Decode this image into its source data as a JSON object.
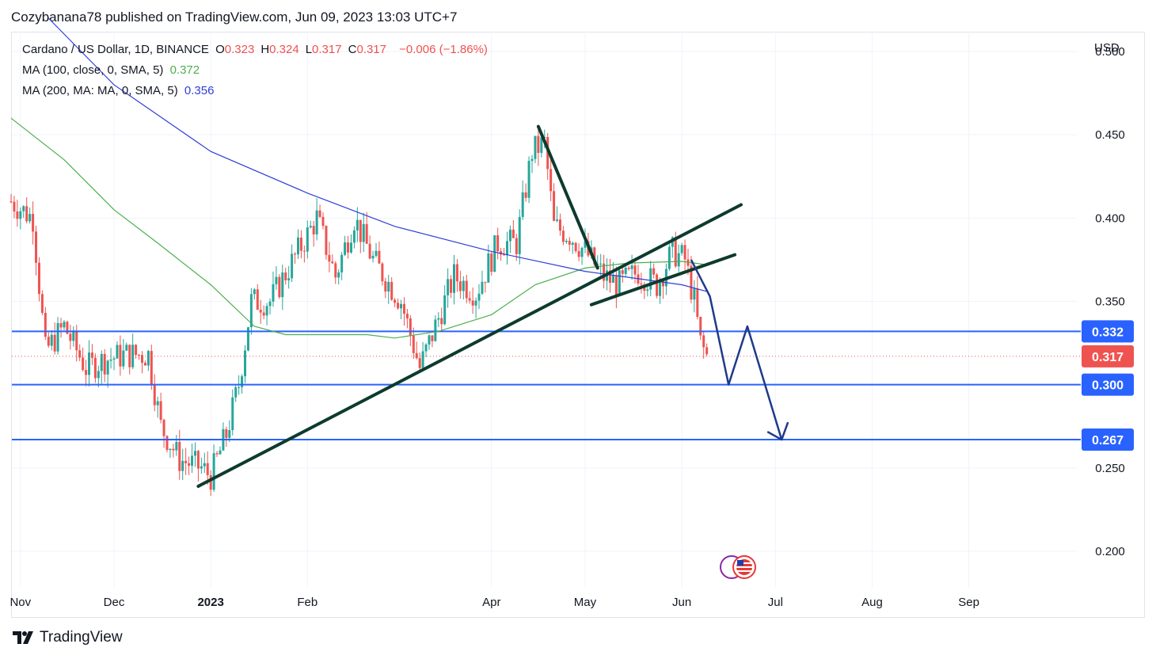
{
  "publisher_line": "Cozybanana78 published on TradingView.com, Jun 09, 2023 13:03 UTC+7",
  "brand": {
    "name": "TradingView",
    "logo_icon": "tradingview-logo-icon"
  },
  "legend": {
    "symbol": "Cardano / US Dollar, 1D, BINANCE",
    "ohlc": [
      {
        "key": "O",
        "value": "0.323"
      },
      {
        "key": "H",
        "value": "0.324"
      },
      {
        "key": "L",
        "value": "0.317"
      },
      {
        "key": "C",
        "value": "0.317"
      }
    ],
    "change": "−0.006 (−1.86%)",
    "ma100_label": "MA (100, close, 0, SMA, 5)",
    "ma100_value": "0.372",
    "ma200_label": "MA (200, MA: MA, 0, SMA, 5)",
    "ma200_value": "0.356"
  },
  "colors": {
    "up": "#26a69a",
    "down": "#ef5350",
    "ma100": "#4caf50",
    "ma200": "#2f3ed8",
    "hline": "#2962ff",
    "trend": "#0d3b2e",
    "projection": "#1e3a8a",
    "price_tag": "#ef5350"
  },
  "chart_data": {
    "type": "candlestick",
    "currency": "USD",
    "ylim": [
      0.18,
      0.51
    ],
    "y_ticks": [
      "0.500",
      "0.450",
      "0.400",
      "0.350",
      "0.250",
      "0.200"
    ],
    "x_ticks": [
      "Nov",
      "Dec",
      "2023",
      "Feb",
      "Apr",
      "May",
      "Jun",
      "Jul",
      "Aug",
      "Sep"
    ],
    "x_tick_dates": [
      "2022-11-01",
      "2022-12-01",
      "2023-01-01",
      "2023-02-01",
      "2023-04-01",
      "2023-05-01",
      "2023-06-01",
      "2023-07-01",
      "2023-08-01",
      "2023-09-01"
    ],
    "date_range": [
      "2022-10-29",
      "2023-09-28"
    ],
    "last_date": "2023-06-09",
    "last_price": 0.317,
    "last_price_label": "0.317",
    "horizontal_levels": [
      {
        "value": 0.332,
        "label": "0.332"
      },
      {
        "value": 0.3,
        "label": "0.300"
      },
      {
        "value": 0.267,
        "label": "0.267"
      }
    ],
    "close_series": [
      {
        "d": "2022-10-29",
        "v": 0.41
      },
      {
        "d": "2022-11-05",
        "v": 0.4
      },
      {
        "d": "2022-11-09",
        "v": 0.32
      },
      {
        "d": "2022-11-15",
        "v": 0.335
      },
      {
        "d": "2022-11-22",
        "v": 0.31
      },
      {
        "d": "2022-11-28",
        "v": 0.315
      },
      {
        "d": "2022-12-05",
        "v": 0.318
      },
      {
        "d": "2022-12-12",
        "v": 0.318
      },
      {
        "d": "2022-12-16",
        "v": 0.275
      },
      {
        "d": "2022-12-22",
        "v": 0.255
      },
      {
        "d": "2022-12-29",
        "v": 0.25
      },
      {
        "d": "2023-01-01",
        "v": 0.245
      },
      {
        "d": "2023-01-06",
        "v": 0.27
      },
      {
        "d": "2023-01-10",
        "v": 0.3
      },
      {
        "d": "2023-01-14",
        "v": 0.35
      },
      {
        "d": "2023-01-20",
        "v": 0.35
      },
      {
        "d": "2023-01-29",
        "v": 0.38
      },
      {
        "d": "2023-02-04",
        "v": 0.4
      },
      {
        "d": "2023-02-10",
        "v": 0.365
      },
      {
        "d": "2023-02-16",
        "v": 0.4
      },
      {
        "d": "2023-02-22",
        "v": 0.375
      },
      {
        "d": "2023-03-03",
        "v": 0.35
      },
      {
        "d": "2023-03-09",
        "v": 0.31
      },
      {
        "d": "2023-03-13",
        "v": 0.33
      },
      {
        "d": "2023-03-20",
        "v": 0.365
      },
      {
        "d": "2023-03-27",
        "v": 0.355
      },
      {
        "d": "2023-04-03",
        "v": 0.385
      },
      {
        "d": "2023-04-09",
        "v": 0.385
      },
      {
        "d": "2023-04-14",
        "v": 0.44
      },
      {
        "d": "2023-04-18",
        "v": 0.445
      },
      {
        "d": "2023-04-21",
        "v": 0.395
      },
      {
        "d": "2023-04-26",
        "v": 0.39
      },
      {
        "d": "2023-05-01",
        "v": 0.38
      },
      {
        "d": "2023-05-07",
        "v": 0.365
      },
      {
        "d": "2023-05-12",
        "v": 0.36
      },
      {
        "d": "2023-05-18",
        "v": 0.368
      },
      {
        "d": "2023-05-24",
        "v": 0.36
      },
      {
        "d": "2023-05-29",
        "v": 0.38
      },
      {
        "d": "2023-06-02",
        "v": 0.375
      },
      {
        "d": "2023-06-05",
        "v": 0.35
      },
      {
        "d": "2023-06-07",
        "v": 0.325
      },
      {
        "d": "2023-06-09",
        "v": 0.317
      }
    ],
    "ma100": [
      {
        "d": "2022-10-29",
        "v": 0.46
      },
      {
        "d": "2022-11-15",
        "v": 0.435
      },
      {
        "d": "2022-12-01",
        "v": 0.405
      },
      {
        "d": "2022-12-15",
        "v": 0.385
      },
      {
        "d": "2023-01-01",
        "v": 0.36
      },
      {
        "d": "2023-01-15",
        "v": 0.335
      },
      {
        "d": "2023-01-25",
        "v": 0.33
      },
      {
        "d": "2023-02-20",
        "v": 0.33
      },
      {
        "d": "2023-03-01",
        "v": 0.328
      },
      {
        "d": "2023-03-15",
        "v": 0.332
      },
      {
        "d": "2023-04-01",
        "v": 0.342
      },
      {
        "d": "2023-04-15",
        "v": 0.36
      },
      {
        "d": "2023-05-01",
        "v": 0.37
      },
      {
        "d": "2023-05-15",
        "v": 0.373
      },
      {
        "d": "2023-06-01",
        "v": 0.374
      },
      {
        "d": "2023-06-09",
        "v": 0.372
      }
    ],
    "ma200": [
      {
        "d": "2022-11-10",
        "v": 0.52
      },
      {
        "d": "2022-12-01",
        "v": 0.48
      },
      {
        "d": "2023-01-01",
        "v": 0.44
      },
      {
        "d": "2023-02-01",
        "v": 0.415
      },
      {
        "d": "2023-03-01",
        "v": 0.395
      },
      {
        "d": "2023-04-01",
        "v": 0.38
      },
      {
        "d": "2023-05-01",
        "v": 0.368
      },
      {
        "d": "2023-06-01",
        "v": 0.36
      },
      {
        "d": "2023-06-09",
        "v": 0.356
      }
    ],
    "trendlines": [
      {
        "name": "rising-support",
        "from": {
          "d": "2022-12-28",
          "v": 0.239
        },
        "to": {
          "d": "2023-06-20",
          "v": 0.408
        }
      },
      {
        "name": "channel-lower",
        "from": {
          "d": "2023-05-03",
          "v": 0.348
        },
        "to": {
          "d": "2023-06-18",
          "v": 0.378
        }
      },
      {
        "name": "wedge-left",
        "from": {
          "d": "2023-04-16",
          "v": 0.455
        },
        "to": {
          "d": "2023-05-05",
          "v": 0.37
        }
      }
    ],
    "projection_path": [
      {
        "d": "2023-06-04",
        "v": 0.375
      },
      {
        "d": "2023-06-10",
        "v": 0.353
      },
      {
        "d": "2023-06-16",
        "v": 0.3
      },
      {
        "d": "2023-06-22",
        "v": 0.335
      },
      {
        "d": "2023-07-03",
        "v": 0.267
      }
    ]
  }
}
